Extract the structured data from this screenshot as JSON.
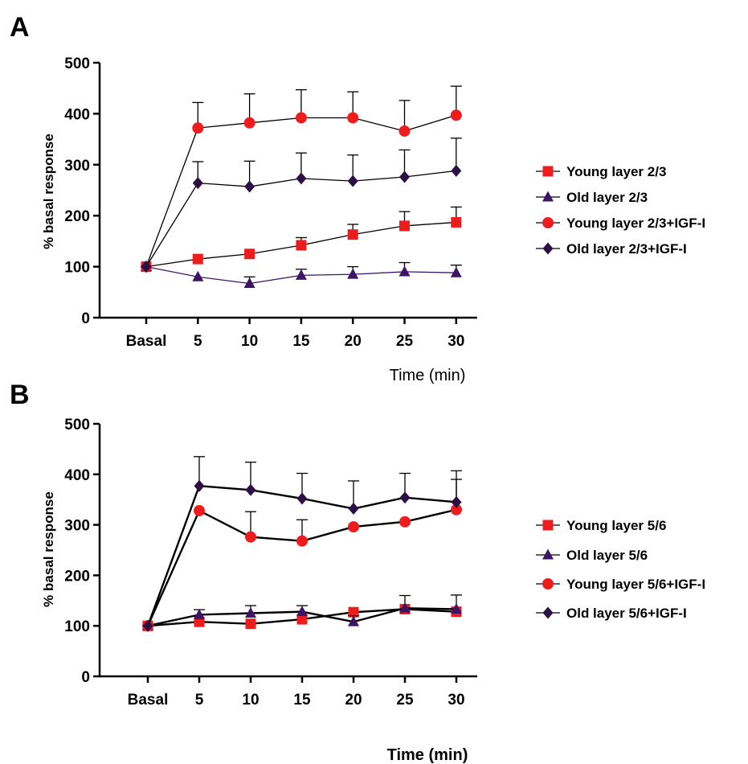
{
  "chart_data": [
    {
      "type": "line",
      "panel_label": "A",
      "categories": [
        "Basal",
        "5",
        "10",
        "15",
        "20",
        "25",
        "30"
      ],
      "ylabel": "% basal response",
      "xlabel": "Time (min)",
      "ylim": [
        0,
        500
      ],
      "yticks": [
        0,
        100,
        200,
        300,
        400,
        500
      ],
      "legend_position": "right",
      "series": [
        {
          "name": "Young layer 2/3",
          "marker": "square",
          "color": "#ee1c1c",
          "line_color": "#000000",
          "values": [
            100,
            115,
            125,
            142,
            163,
            180,
            187
          ],
          "errors": [
            0,
            0,
            0,
            15,
            20,
            28,
            30
          ]
        },
        {
          "name": "Old layer 2/3",
          "marker": "triangle",
          "color": "#3d1466",
          "line_color": "#3d1466",
          "values": [
            100,
            80,
            67,
            83,
            85,
            90,
            88
          ],
          "errors": [
            0,
            0,
            13,
            12,
            15,
            18,
            15
          ]
        },
        {
          "name": "Young layer 2/3+IGF-I",
          "marker": "circle",
          "color": "#ee1c1c",
          "line_color": "#000000",
          "values": [
            100,
            372,
            382,
            392,
            392,
            366,
            397
          ],
          "errors": [
            0,
            50,
            57,
            55,
            51,
            60,
            57
          ]
        },
        {
          "name": "Old layer 2/3+IGF-I",
          "marker": "diamond",
          "color": "#2e0f45",
          "line_color": "#000000",
          "values": [
            100,
            264,
            257,
            273,
            268,
            276,
            288
          ],
          "errors": [
            0,
            42,
            50,
            50,
            51,
            53,
            64
          ]
        }
      ]
    },
    {
      "type": "line",
      "panel_label": "B",
      "categories": [
        "Basal",
        "5",
        "10",
        "15",
        "20",
        "25",
        "30"
      ],
      "ylabel": "% basal response",
      "xlabel": "Time (min)",
      "ylim": [
        0,
        500
      ],
      "yticks": [
        0,
        100,
        200,
        300,
        400,
        500
      ],
      "legend_position": "right",
      "series": [
        {
          "name": "Young layer 5/6",
          "marker": "square",
          "color": "#ee1c1c",
          "line_color": "#000000",
          "values": [
            100,
            108,
            104,
            113,
            127,
            133,
            128
          ],
          "errors": [
            0,
            0,
            0,
            0,
            0,
            0,
            0
          ]
        },
        {
          "name": "Old layer 5/6",
          "marker": "triangle",
          "color": "#3d1466",
          "line_color": "#000000",
          "values": [
            100,
            122,
            125,
            128,
            108,
            135,
            133
          ],
          "errors": [
            0,
            10,
            15,
            12,
            12,
            25,
            28
          ]
        },
        {
          "name": "Young layer 5/6+IGF-I",
          "marker": "circle",
          "color": "#ee1c1c",
          "line_color": "#000000",
          "values": [
            100,
            328,
            276,
            268,
            296,
            306,
            330
          ],
          "errors": [
            0,
            0,
            50,
            42,
            0,
            0,
            60
          ]
        },
        {
          "name": "Old layer 5/6+IGF-I",
          "marker": "diamond",
          "color": "#2e0f45",
          "line_color": "#000000",
          "values": [
            100,
            377,
            369,
            352,
            332,
            354,
            345
          ],
          "errors": [
            0,
            58,
            55,
            50,
            55,
            48,
            62
          ]
        }
      ]
    }
  ]
}
